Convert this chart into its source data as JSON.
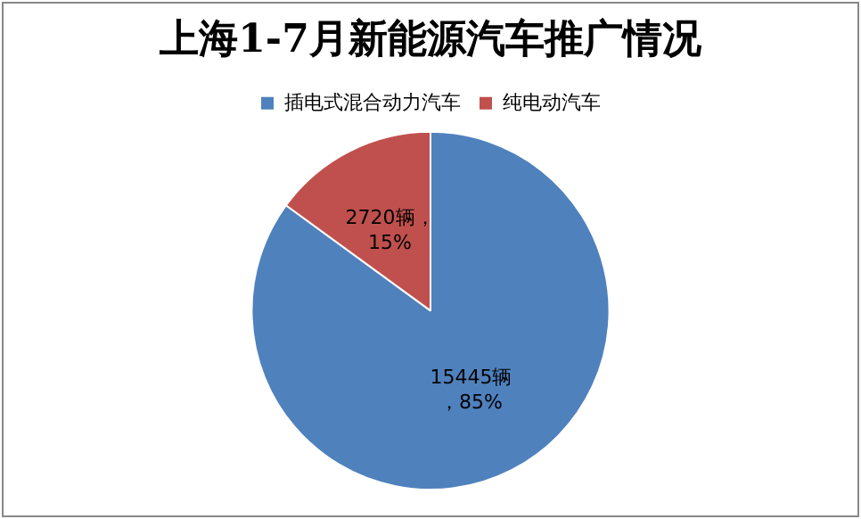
{
  "chart_data": {
    "type": "pie",
    "title": "上海1-7月新能源汽车推广情况",
    "categories": [
      "插电式混合动力汽车",
      "纯电动汽车"
    ],
    "values": [
      15445,
      2720
    ],
    "colors": [
      "#4f81bd",
      "#c0504d"
    ],
    "value_labels": [
      "15445辆，85%",
      "2720辆，15%"
    ],
    "legend": "top"
  }
}
